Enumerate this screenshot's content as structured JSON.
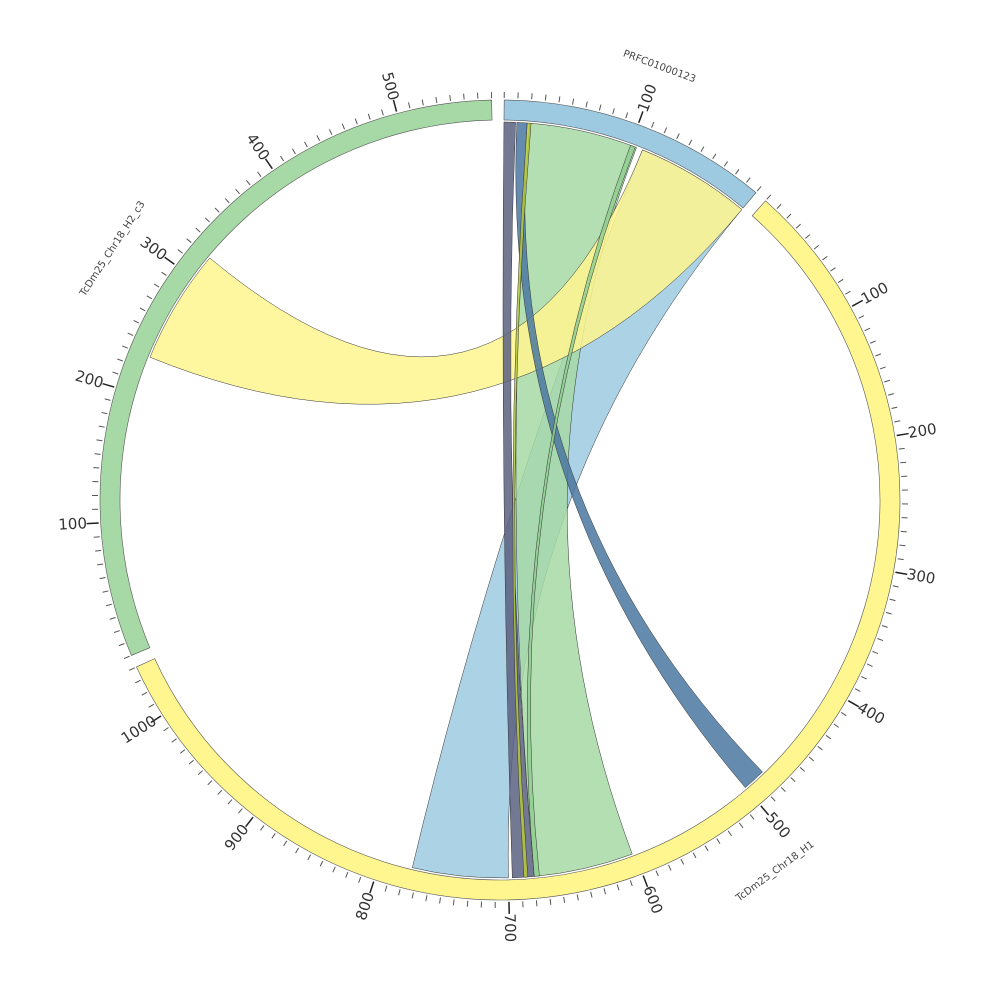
{
  "chart_data": {
    "type": "chord",
    "segments": [
      {
        "name": "PRFC01000123",
        "length": 200,
        "color": "#9ecae1",
        "ticks": [
          100
        ]
      },
      {
        "name": "TcDm25_Chr18_H1",
        "length": 1040,
        "color": "#fff68f",
        "ticks": [
          100,
          200,
          300,
          400,
          500,
          600,
          700,
          800,
          900,
          1000
        ]
      },
      {
        "name": "TcDm25_Chr18_H2_c3",
        "length": 570,
        "color": "#a6d9a6",
        "ticks": [
          100,
          200,
          300,
          400,
          500
        ]
      }
    ],
    "minor_tick_step": 10,
    "links": [
      {
        "color": "#9ecae1",
        "from": {
          "segment": "PRFC01000123",
          "start": 110,
          "end": 200
        },
        "to": {
          "segment": "TcDm25_Chr18_H1",
          "start": 700,
          "end": 775
        }
      },
      {
        "color": "#a6d9a6",
        "from": {
          "segment": "PRFC01000123",
          "start": 20,
          "end": 105
        },
        "to": {
          "segment": "TcDm25_Chr18_H1",
          "start": 602,
          "end": 680
        }
      },
      {
        "color": "#fff68f",
        "from": {
          "segment": "TcDm25_Chr18_H2_c3",
          "start": 230,
          "end": 320
        },
        "to": {
          "segment": "PRFC01000123",
          "start": 110,
          "end": 200
        }
      },
      {
        "color": "#4a78a0",
        "from": {
          "segment": "PRFC01000123",
          "start": 10,
          "end": 18
        },
        "to": {
          "segment": "TcDm25_Chr18_H1",
          "start": 482,
          "end": 500
        }
      },
      {
        "color": "#5b6080",
        "from": {
          "segment": "PRFC01000123",
          "start": 0,
          "end": 9
        },
        "to": {
          "segment": "TcDm25_Chr18_H1",
          "start": 680,
          "end": 697
        }
      },
      {
        "color": "#8fcf8f",
        "from": {
          "segment": "PRFC01000123",
          "start": 100,
          "end": 104
        },
        "to": {
          "segment": "TcDm25_Chr18_H1",
          "start": 676,
          "end": 680
        }
      },
      {
        "color": "#b5c93a",
        "from": {
          "segment": "PRFC01000123",
          "start": 18,
          "end": 21
        },
        "to": {
          "segment": "TcDm25_Chr18_H1",
          "start": 685,
          "end": 688
        }
      }
    ]
  }
}
